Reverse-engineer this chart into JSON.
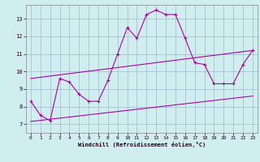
{
  "xlabel": "Windchill (Refroidissement éolien,°C)",
  "x_ticks": [
    0,
    1,
    2,
    3,
    4,
    5,
    6,
    7,
    8,
    9,
    10,
    11,
    12,
    13,
    14,
    15,
    16,
    17,
    18,
    19,
    20,
    21,
    22,
    23
  ],
  "y_ticks": [
    7,
    8,
    9,
    10,
    11,
    12,
    13
  ],
  "ylim": [
    6.5,
    13.8
  ],
  "xlim": [
    -0.5,
    23.5
  ],
  "background_color": "#d0eef0",
  "grid_color": "#a0b8cc",
  "line_color": "#aa00aa",
  "line1_x": [
    0,
    1,
    2,
    3,
    4,
    5,
    6,
    7,
    8,
    9,
    10,
    11,
    12,
    13,
    14,
    15,
    16,
    17,
    18,
    19,
    20,
    21,
    22,
    23
  ],
  "line1_y": [
    8.3,
    7.5,
    7.2,
    9.6,
    9.4,
    8.7,
    8.3,
    8.3,
    9.5,
    11.0,
    12.5,
    11.9,
    13.25,
    13.5,
    13.25,
    13.25,
    11.9,
    10.5,
    10.4,
    9.3,
    9.3,
    9.3,
    10.4,
    11.2
  ],
  "line2_x": [
    0,
    23
  ],
  "line2_y": [
    7.15,
    8.6
  ],
  "line3_x": [
    0,
    23
  ],
  "line3_y": [
    9.6,
    11.2
  ]
}
